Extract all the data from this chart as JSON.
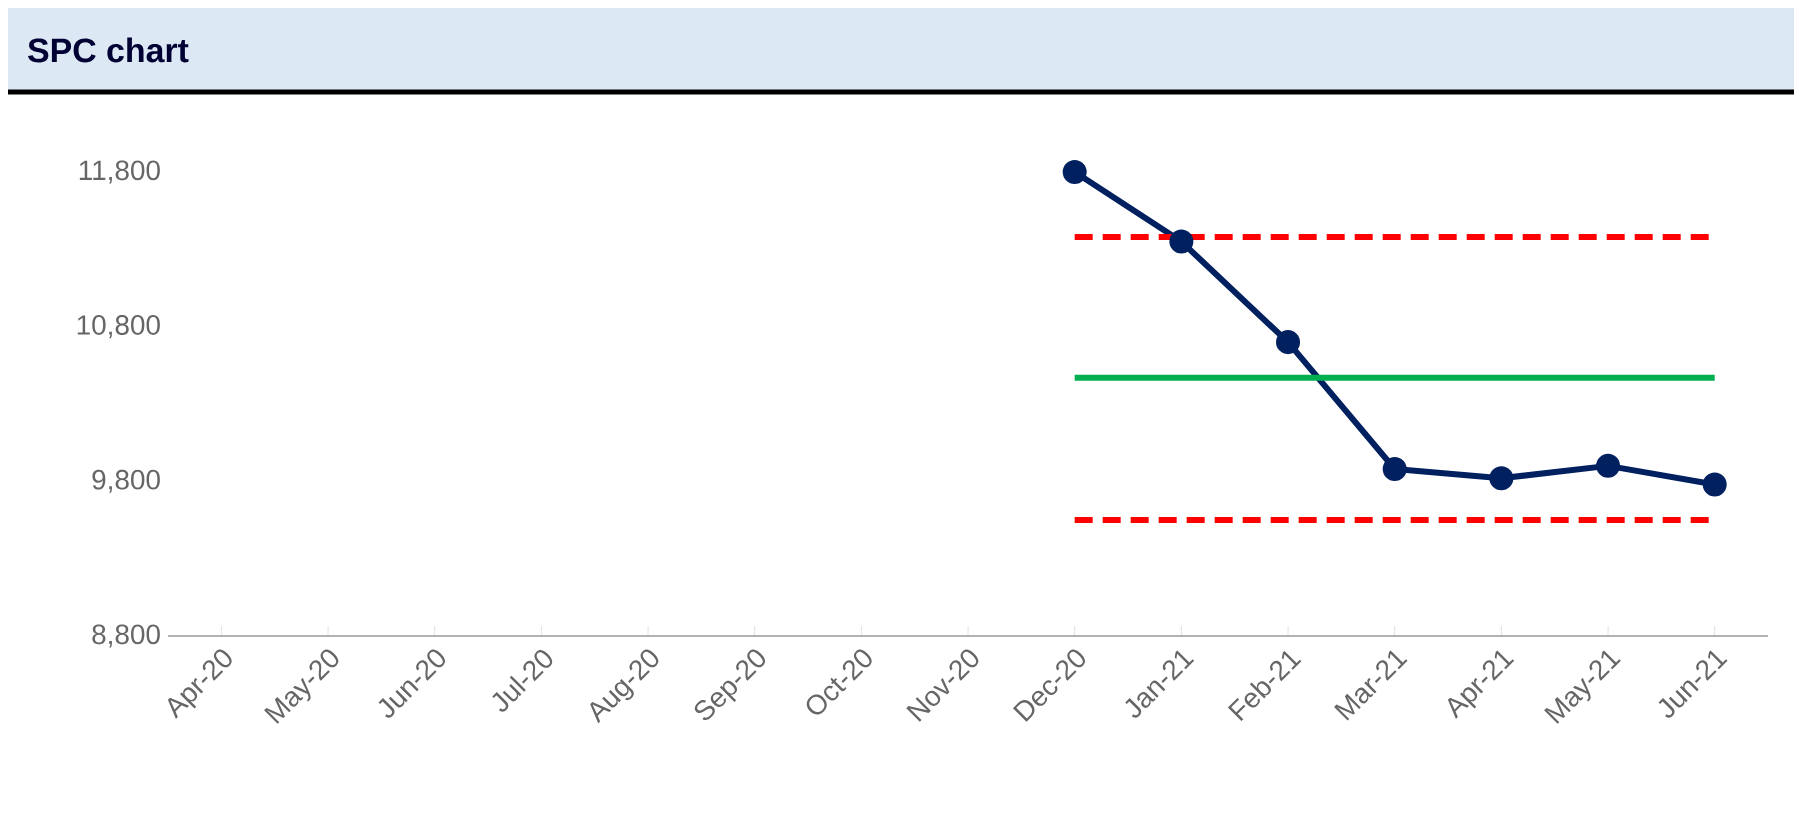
{
  "chart_data": {
    "type": "line",
    "title": "SPC chart",
    "categories": [
      "Apr-20",
      "May-20",
      "Jun-20",
      "Jul-20",
      "Aug-20",
      "Sep-20",
      "Oct-20",
      "Nov-20",
      "Dec-20",
      "Jan-21",
      "Feb-21",
      "Mar-21",
      "Apr-21",
      "May-21",
      "Jun-21"
    ],
    "series": [
      {
        "color": "#002060",
        "marker": "circle",
        "line_style": "solid",
        "values": [
          null,
          null,
          null,
          null,
          null,
          null,
          null,
          null,
          11800,
          11350,
          10700,
          9880,
          9820,
          9900,
          9780
        ]
      },
      {
        "color": "#ff0000",
        "marker": "none",
        "line_style": "dashed",
        "values": [
          null,
          null,
          null,
          null,
          null,
          null,
          null,
          null,
          11380,
          11380,
          11380,
          11380,
          11380,
          11380,
          11380
        ]
      },
      {
        "color": "#00b050",
        "marker": "none",
        "line_style": "solid",
        "values": [
          null,
          null,
          null,
          null,
          null,
          null,
          null,
          null,
          10470,
          10470,
          10470,
          10470,
          10470,
          10470,
          10470
        ]
      },
      {
        "color": "#ff0000",
        "marker": "none",
        "line_style": "dashed",
        "values": [
          null,
          null,
          null,
          null,
          null,
          null,
          null,
          null,
          9550,
          9550,
          9550,
          9550,
          9550,
          9550,
          9550
        ]
      }
    ],
    "ylim": [
      8800,
      11800
    ],
    "yticks": [
      {
        "value": 8800,
        "label": "8,800"
      },
      {
        "value": 9800,
        "label": "9,800"
      },
      {
        "value": 10800,
        "label": "10,800"
      },
      {
        "value": 11800,
        "label": "11,800"
      }
    ],
    "grid": false
  }
}
